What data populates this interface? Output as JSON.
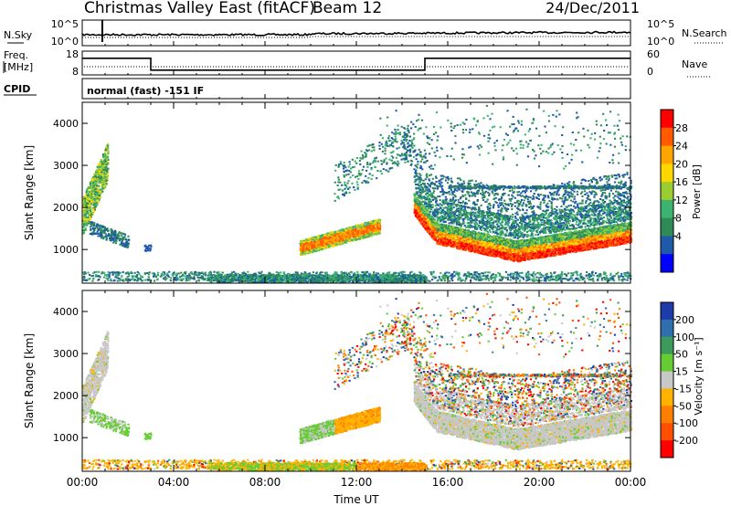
{
  "header": {
    "title": "Christmas Valley East (fitACF)",
    "beam": "Beam 12",
    "date": "24/Dec/2011"
  },
  "top_panels": {
    "sky": {
      "left_label": "N.Sky",
      "right_label": "N.Search",
      "left_ticks": [
        "10^5",
        "10^0"
      ],
      "right_ticks": [
        "10^5",
        "10^0"
      ]
    },
    "freq": {
      "left_label_line1": "Freq.",
      "left_label_line2": "[MHz]",
      "right_label": "Nave",
      "left_ticks": [
        "18",
        "8"
      ],
      "right_ticks": [
        "60",
        "0"
      ],
      "series": [
        {
          "x_hours": [
            0,
            3,
            3,
            15,
            15,
            24
          ],
          "freq_mhz": [
            15,
            15,
            10,
            10,
            15,
            15
          ]
        }
      ]
    },
    "cpid": {
      "label": "CPID",
      "text": "normal (fast) -151 IF"
    }
  },
  "chart_data": [
    {
      "type": "heatmap",
      "name": "power",
      "ylabel": "Slant Range [km]",
      "xlim_hours": [
        0,
        24
      ],
      "ylim": [
        200,
        4500
      ],
      "yticks": [
        1000,
        2000,
        3000,
        4000
      ],
      "colorbar": {
        "label": "Power [dB]",
        "ticks": [
          "28",
          "24",
          "20",
          "16",
          "12",
          "8",
          "4"
        ],
        "colors": [
          "#ff0000",
          "#ff5a00",
          "#ffa500",
          "#ffd700",
          "#9acd32",
          "#3cb371",
          "#2e8b57",
          "#1e5aa8",
          "#0000ff"
        ]
      }
    },
    {
      "type": "heatmap",
      "name": "velocity",
      "xlabel": "Time UT",
      "ylabel": "Slant Range [km]",
      "xlim_hours": [
        0,
        24
      ],
      "ylim": [
        200,
        4500
      ],
      "yticks": [
        1000,
        2000,
        3000,
        4000
      ],
      "xticks": [
        "00:00",
        "04:00",
        "08:00",
        "12:00",
        "16:00",
        "20:00",
        "00:00"
      ],
      "colorbar": {
        "label": "Velocity [m s⁻¹]",
        "ticks": [
          "200",
          "100",
          "50",
          "15",
          "-15",
          "-50",
          "-100",
          "-200"
        ],
        "colors": [
          "#1e3ca8",
          "#2f6fb0",
          "#3c9a5a",
          "#66cc33",
          "#c8c8c8",
          "#ffb300",
          "#ff8000",
          "#ff5000",
          "#ff0000"
        ]
      }
    }
  ]
}
